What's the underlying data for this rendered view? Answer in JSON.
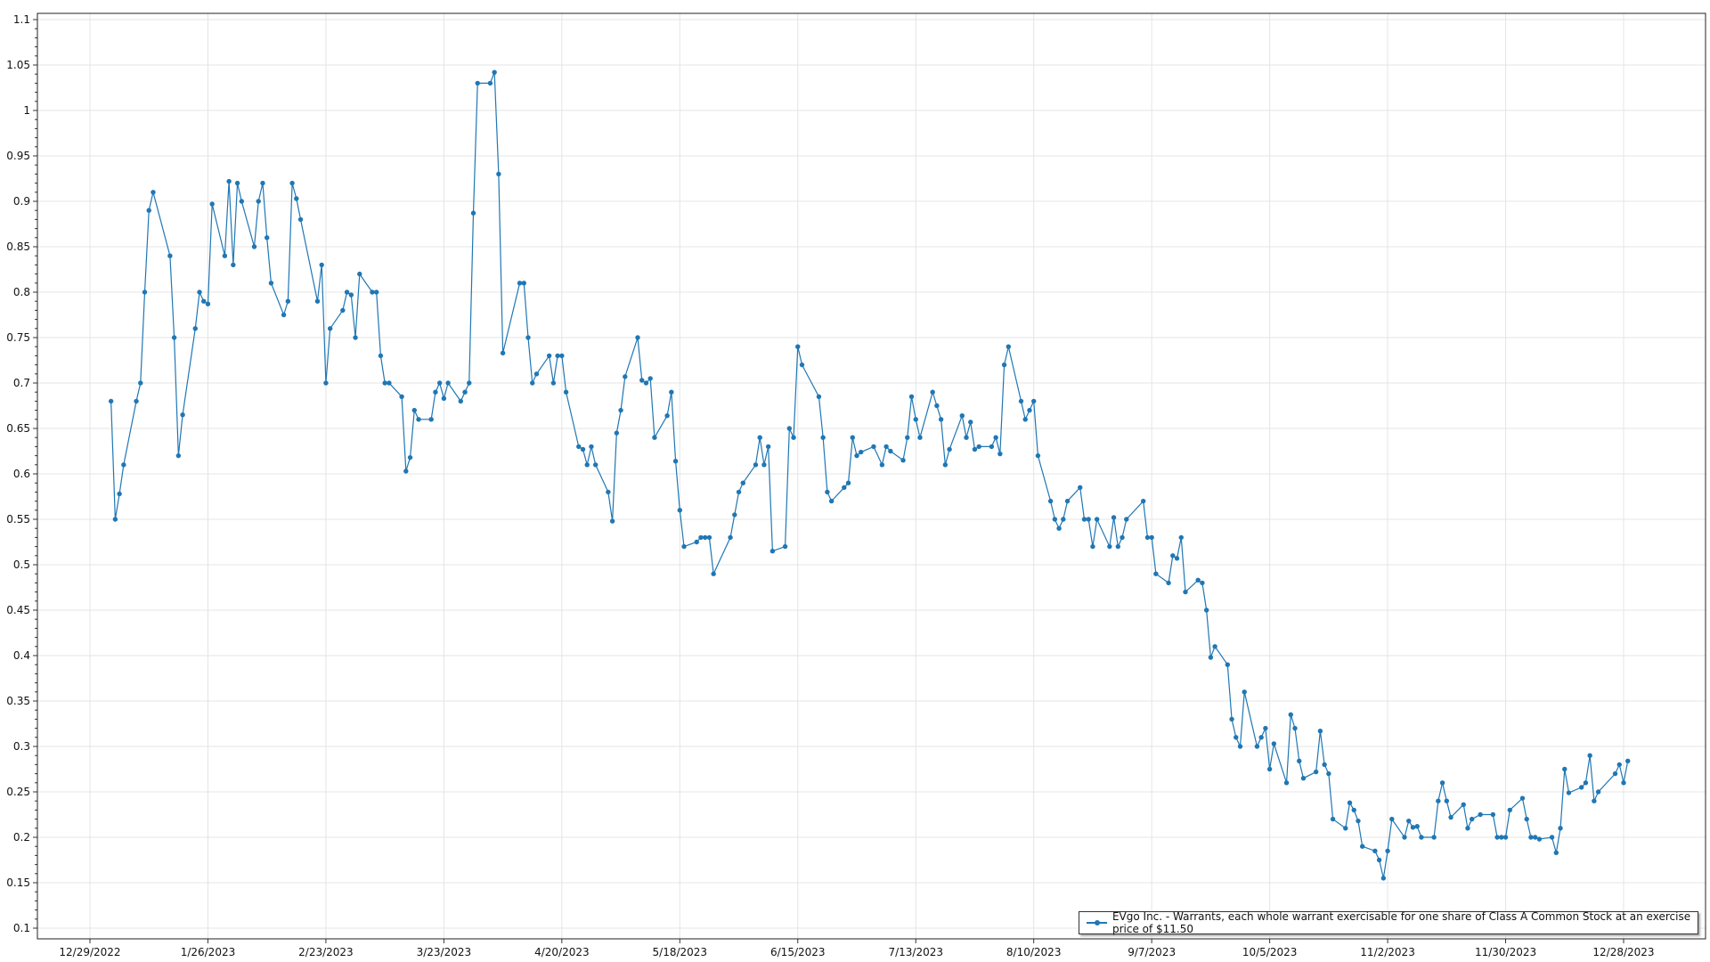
{
  "chart_data": {
    "type": "line",
    "title": "",
    "xlabel": "",
    "ylabel": "",
    "ylim": [
      0.1,
      1.1
    ],
    "yticks": [
      "0.1",
      "0.15",
      "0.2",
      "0.25",
      "0.3",
      "0.35",
      "0.4",
      "0.45",
      "0.5",
      "0.55",
      "0.6",
      "0.65",
      "0.7",
      "0.75",
      "0.8",
      "0.85",
      "0.9",
      "0.95",
      "1",
      "1.05",
      "1.1"
    ],
    "xticks": [
      "12/29/2022",
      "1/26/2023",
      "2/23/2023",
      "3/23/2023",
      "4/20/2023",
      "5/18/2023",
      "6/15/2023",
      "7/13/2023",
      "8/10/2023",
      "9/7/2023",
      "10/5/2023",
      "11/2/2023",
      "11/30/2023",
      "12/28/2023"
    ],
    "grid": true,
    "legend_placement": "bottom-right",
    "color": "#1f77b4",
    "series": [
      {
        "name": "EVgo Inc. - Warrants, each whole warrant exercisable for one share of Class A Common Stock at an exercise price of $11.50",
        "points": [
          [
            "2023-01-03",
            0.68
          ],
          [
            "2023-01-04",
            0.55
          ],
          [
            "2023-01-05",
            0.578
          ],
          [
            "2023-01-06",
            0.61
          ],
          [
            "2023-01-09",
            0.68
          ],
          [
            "2023-01-10",
            0.7
          ],
          [
            "2023-01-11",
            0.8
          ],
          [
            "2023-01-12",
            0.89
          ],
          [
            "2023-01-13",
            0.91
          ],
          [
            "2023-01-17",
            0.84
          ],
          [
            "2023-01-18",
            0.75
          ],
          [
            "2023-01-19",
            0.62
          ],
          [
            "2023-01-20",
            0.665
          ],
          [
            "2023-01-23",
            0.76
          ],
          [
            "2023-01-24",
            0.8
          ],
          [
            "2023-01-25",
            0.79
          ],
          [
            "2023-01-26",
            0.787
          ],
          [
            "2023-01-27",
            0.897
          ],
          [
            "2023-01-30",
            0.84
          ],
          [
            "2023-01-31",
            0.922
          ],
          [
            "2023-02-01",
            0.83
          ],
          [
            "2023-02-02",
            0.92
          ],
          [
            "2023-02-03",
            0.9
          ],
          [
            "2023-02-06",
            0.85
          ],
          [
            "2023-02-07",
            0.9
          ],
          [
            "2023-02-08",
            0.92
          ],
          [
            "2023-02-09",
            0.86
          ],
          [
            "2023-02-10",
            0.81
          ],
          [
            "2023-02-13",
            0.775
          ],
          [
            "2023-02-14",
            0.79
          ],
          [
            "2023-02-15",
            0.92
          ],
          [
            "2023-02-16",
            0.903
          ],
          [
            "2023-02-17",
            0.88
          ],
          [
            "2023-02-21",
            0.79
          ],
          [
            "2023-02-22",
            0.83
          ],
          [
            "2023-02-23",
            0.7
          ],
          [
            "2023-02-24",
            0.76
          ],
          [
            "2023-02-27",
            0.78
          ],
          [
            "2023-02-28",
            0.8
          ],
          [
            "2023-03-01",
            0.797
          ],
          [
            "2023-03-02",
            0.75
          ],
          [
            "2023-03-03",
            0.82
          ],
          [
            "2023-03-06",
            0.8
          ],
          [
            "2023-03-07",
            0.8
          ],
          [
            "2023-03-08",
            0.73
          ],
          [
            "2023-03-09",
            0.7
          ],
          [
            "2023-03-10",
            0.7
          ],
          [
            "2023-03-13",
            0.685
          ],
          [
            "2023-03-14",
            0.603
          ],
          [
            "2023-03-15",
            0.618
          ],
          [
            "2023-03-16",
            0.67
          ],
          [
            "2023-03-17",
            0.66
          ],
          [
            "2023-03-20",
            0.66
          ],
          [
            "2023-03-21",
            0.69
          ],
          [
            "2023-03-22",
            0.7
          ],
          [
            "2023-03-23",
            0.683
          ],
          [
            "2023-03-24",
            0.7
          ],
          [
            "2023-03-27",
            0.68
          ],
          [
            "2023-03-28",
            0.69
          ],
          [
            "2023-03-29",
            0.7
          ],
          [
            "2023-03-30",
            0.887
          ],
          [
            "2023-03-31",
            1.03
          ],
          [
            "2023-04-03",
            1.03
          ],
          [
            "2023-04-04",
            1.042
          ],
          [
            "2023-04-05",
            0.93
          ],
          [
            "2023-04-06",
            0.733
          ],
          [
            "2023-04-10",
            0.81
          ],
          [
            "2023-04-11",
            0.81
          ],
          [
            "2023-04-12",
            0.75
          ],
          [
            "2023-04-13",
            0.7
          ],
          [
            "2023-04-14",
            0.71
          ],
          [
            "2023-04-17",
            0.73
          ],
          [
            "2023-04-18",
            0.7
          ],
          [
            "2023-04-19",
            0.73
          ],
          [
            "2023-04-20",
            0.73
          ],
          [
            "2023-04-21",
            0.69
          ],
          [
            "2023-04-24",
            0.63
          ],
          [
            "2023-04-25",
            0.627
          ],
          [
            "2023-04-26",
            0.61
          ],
          [
            "2023-04-27",
            0.63
          ],
          [
            "2023-04-28",
            0.61
          ],
          [
            "2023-05-01",
            0.58
          ],
          [
            "2023-05-02",
            0.548
          ],
          [
            "2023-05-03",
            0.645
          ],
          [
            "2023-05-04",
            0.67
          ],
          [
            "2023-05-05",
            0.707
          ],
          [
            "2023-05-08",
            0.75
          ],
          [
            "2023-05-09",
            0.703
          ],
          [
            "2023-05-10",
            0.7
          ],
          [
            "2023-05-11",
            0.705
          ],
          [
            "2023-05-12",
            0.64
          ],
          [
            "2023-05-15",
            0.664
          ],
          [
            "2023-05-16",
            0.69
          ],
          [
            "2023-05-17",
            0.614
          ],
          [
            "2023-05-18",
            0.56
          ],
          [
            "2023-05-19",
            0.52
          ],
          [
            "2023-05-22",
            0.525
          ],
          [
            "2023-05-23",
            0.53
          ],
          [
            "2023-05-24",
            0.53
          ],
          [
            "2023-05-25",
            0.53
          ],
          [
            "2023-05-26",
            0.49
          ],
          [
            "2023-05-30",
            0.53
          ],
          [
            "2023-05-31",
            0.555
          ],
          [
            "2023-06-01",
            0.58
          ],
          [
            "2023-06-02",
            0.59
          ],
          [
            "2023-06-05",
            0.61
          ],
          [
            "2023-06-06",
            0.64
          ],
          [
            "2023-06-07",
            0.61
          ],
          [
            "2023-06-08",
            0.63
          ],
          [
            "2023-06-09",
            0.515
          ],
          [
            "2023-06-12",
            0.52
          ],
          [
            "2023-06-13",
            0.65
          ],
          [
            "2023-06-14",
            0.64
          ],
          [
            "2023-06-15",
            0.74
          ],
          [
            "2023-06-16",
            0.72
          ],
          [
            "2023-06-20",
            0.685
          ],
          [
            "2023-06-21",
            0.64
          ],
          [
            "2023-06-22",
            0.58
          ],
          [
            "2023-06-23",
            0.57
          ],
          [
            "2023-06-26",
            0.585
          ],
          [
            "2023-06-27",
            0.59
          ],
          [
            "2023-06-28",
            0.64
          ],
          [
            "2023-06-29",
            0.62
          ],
          [
            "2023-06-30",
            0.624
          ],
          [
            "2023-07-03",
            0.63
          ],
          [
            "2023-07-05",
            0.61
          ],
          [
            "2023-07-06",
            0.63
          ],
          [
            "2023-07-07",
            0.625
          ],
          [
            "2023-07-10",
            0.615
          ],
          [
            "2023-07-11",
            0.64
          ],
          [
            "2023-07-12",
            0.685
          ],
          [
            "2023-07-13",
            0.66
          ],
          [
            "2023-07-14",
            0.64
          ],
          [
            "2023-07-17",
            0.69
          ],
          [
            "2023-07-18",
            0.675
          ],
          [
            "2023-07-19",
            0.66
          ],
          [
            "2023-07-20",
            0.61
          ],
          [
            "2023-07-21",
            0.627
          ],
          [
            "2023-07-24",
            0.664
          ],
          [
            "2023-07-25",
            0.64
          ],
          [
            "2023-07-26",
            0.657
          ],
          [
            "2023-07-27",
            0.627
          ],
          [
            "2023-07-28",
            0.63
          ],
          [
            "2023-07-31",
            0.63
          ],
          [
            "2023-08-01",
            0.64
          ],
          [
            "2023-08-02",
            0.622
          ],
          [
            "2023-08-03",
            0.72
          ],
          [
            "2023-08-04",
            0.74
          ],
          [
            "2023-08-07",
            0.68
          ],
          [
            "2023-08-08",
            0.66
          ],
          [
            "2023-08-09",
            0.67
          ],
          [
            "2023-08-10",
            0.68
          ],
          [
            "2023-08-11",
            0.62
          ],
          [
            "2023-08-14",
            0.57
          ],
          [
            "2023-08-15",
            0.55
          ],
          [
            "2023-08-16",
            0.54
          ],
          [
            "2023-08-17",
            0.55
          ],
          [
            "2023-08-18",
            0.57
          ],
          [
            "2023-08-21",
            0.585
          ],
          [
            "2023-08-22",
            0.55
          ],
          [
            "2023-08-23",
            0.55
          ],
          [
            "2023-08-24",
            0.52
          ],
          [
            "2023-08-25",
            0.55
          ],
          [
            "2023-08-28",
            0.52
          ],
          [
            "2023-08-29",
            0.552
          ],
          [
            "2023-08-30",
            0.52
          ],
          [
            "2023-08-31",
            0.53
          ],
          [
            "2023-09-01",
            0.55
          ],
          [
            "2023-09-05",
            0.57
          ],
          [
            "2023-09-06",
            0.53
          ],
          [
            "2023-09-07",
            0.53
          ],
          [
            "2023-09-08",
            0.49
          ],
          [
            "2023-09-11",
            0.48
          ],
          [
            "2023-09-12",
            0.51
          ],
          [
            "2023-09-13",
            0.507
          ],
          [
            "2023-09-14",
            0.53
          ],
          [
            "2023-09-15",
            0.47
          ],
          [
            "2023-09-18",
            0.483
          ],
          [
            "2023-09-19",
            0.48
          ],
          [
            "2023-09-20",
            0.45
          ],
          [
            "2023-09-21",
            0.398
          ],
          [
            "2023-09-22",
            0.41
          ],
          [
            "2023-09-25",
            0.39
          ],
          [
            "2023-09-26",
            0.33
          ],
          [
            "2023-09-27",
            0.31
          ],
          [
            "2023-09-28",
            0.3
          ],
          [
            "2023-09-29",
            0.36
          ],
          [
            "2023-10-02",
            0.3
          ],
          [
            "2023-10-03",
            0.31
          ],
          [
            "2023-10-04",
            0.32
          ],
          [
            "2023-10-05",
            0.275
          ],
          [
            "2023-10-06",
            0.303
          ],
          [
            "2023-10-09",
            0.26
          ],
          [
            "2023-10-10",
            0.335
          ],
          [
            "2023-10-11",
            0.32
          ],
          [
            "2023-10-12",
            0.284
          ],
          [
            "2023-10-13",
            0.265
          ],
          [
            "2023-10-16",
            0.272
          ],
          [
            "2023-10-17",
            0.317
          ],
          [
            "2023-10-18",
            0.28
          ],
          [
            "2023-10-19",
            0.27
          ],
          [
            "2023-10-20",
            0.22
          ],
          [
            "2023-10-23",
            0.21
          ],
          [
            "2023-10-24",
            0.238
          ],
          [
            "2023-10-25",
            0.23
          ],
          [
            "2023-10-26",
            0.218
          ],
          [
            "2023-10-27",
            0.19
          ],
          [
            "2023-10-30",
            0.185
          ],
          [
            "2023-10-31",
            0.175
          ],
          [
            "2023-11-01",
            0.155
          ],
          [
            "2023-11-02",
            0.185
          ],
          [
            "2023-11-03",
            0.22
          ],
          [
            "2023-11-06",
            0.2
          ],
          [
            "2023-11-07",
            0.218
          ],
          [
            "2023-11-08",
            0.211
          ],
          [
            "2023-11-09",
            0.212
          ],
          [
            "2023-11-10",
            0.2
          ],
          [
            "2023-11-13",
            0.2
          ],
          [
            "2023-11-14",
            0.24
          ],
          [
            "2023-11-15",
            0.26
          ],
          [
            "2023-11-16",
            0.24
          ],
          [
            "2023-11-17",
            0.222
          ],
          [
            "2023-11-20",
            0.236
          ],
          [
            "2023-11-21",
            0.21
          ],
          [
            "2023-11-22",
            0.22
          ],
          [
            "2023-11-24",
            0.225
          ],
          [
            "2023-11-27",
            0.225
          ],
          [
            "2023-11-28",
            0.2
          ],
          [
            "2023-11-29",
            0.2
          ],
          [
            "2023-11-30",
            0.2
          ],
          [
            "2023-12-01",
            0.23
          ],
          [
            "2023-12-04",
            0.243
          ],
          [
            "2023-12-05",
            0.22
          ],
          [
            "2023-12-06",
            0.2
          ],
          [
            "2023-12-07",
            0.2
          ],
          [
            "2023-12-08",
            0.198
          ],
          [
            "2023-12-11",
            0.2
          ],
          [
            "2023-12-12",
            0.183
          ],
          [
            "2023-12-13",
            0.21
          ],
          [
            "2023-12-14",
            0.275
          ],
          [
            "2023-12-15",
            0.249
          ],
          [
            "2023-12-18",
            0.255
          ],
          [
            "2023-12-19",
            0.26
          ],
          [
            "2023-12-20",
            0.29
          ],
          [
            "2023-12-21",
            0.24
          ],
          [
            "2023-12-22",
            0.25
          ],
          [
            "2023-12-26",
            0.27
          ],
          [
            "2023-12-27",
            0.28
          ],
          [
            "2023-12-28",
            0.26
          ],
          [
            "2023-12-29",
            0.284
          ]
        ]
      }
    ]
  }
}
